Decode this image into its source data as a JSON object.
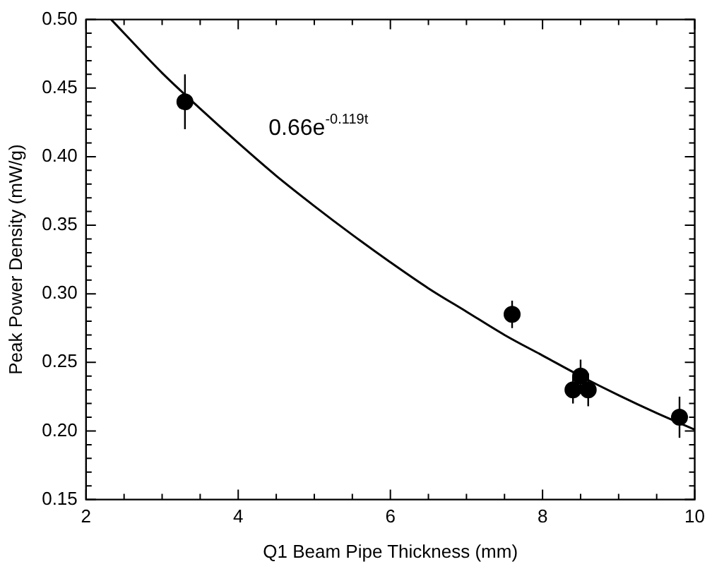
{
  "chart_data": {
    "type": "scatter",
    "xlabel": "Q1 Beam Pipe Thickness (mm)",
    "ylabel": "Peak Power Density (mW/g)",
    "xlim": [
      2,
      10
    ],
    "xticks": [
      2,
      4,
      6,
      8,
      10
    ],
    "ylim": [
      0.15,
      0.5
    ],
    "yticks": [
      0.15,
      {
        "value": 0.2,
        "label": "0.20"
      },
      0.25,
      {
        "value": 0.3,
        "label": "0.30"
      },
      0.35,
      {
        "value": 0.4,
        "label": "0.40"
      },
      0.45,
      {
        "value": 0.5,
        "label": "0.50"
      }
    ],
    "grid": false,
    "legend": false,
    "marker": "circle",
    "annotations": [
      "0.66e$^{-0.119t}$"
    ],
    "series": [
      {
        "type": "scatter",
        "color": "#000000",
        "x": [
          3.3,
          7.6,
          8.5,
          8.4,
          8.6,
          9.8
        ],
        "values": [
          0.44,
          0.285,
          0.24,
          0.23,
          0.23,
          0.21
        ],
        "errors": [
          0.02,
          0.01,
          0.012,
          0.01,
          0.012,
          0.015
        ]
      },
      {
        "type": "line",
        "color": "#000000",
        "marker": "none",
        "x": [
          2.33,
          2.5,
          3,
          3.5,
          4,
          4.5,
          5,
          5.5,
          6,
          6.5,
          7,
          7.5,
          8,
          8.5,
          9,
          9.5,
          10
        ],
        "values": [
          0.5,
          0.49,
          0.461,
          0.435,
          0.41,
          0.386,
          0.364,
          0.343,
          0.323,
          0.304,
          0.287,
          0.27,
          0.255,
          0.24,
          0.226,
          0.213,
          0.201
        ]
      }
    ]
  }
}
